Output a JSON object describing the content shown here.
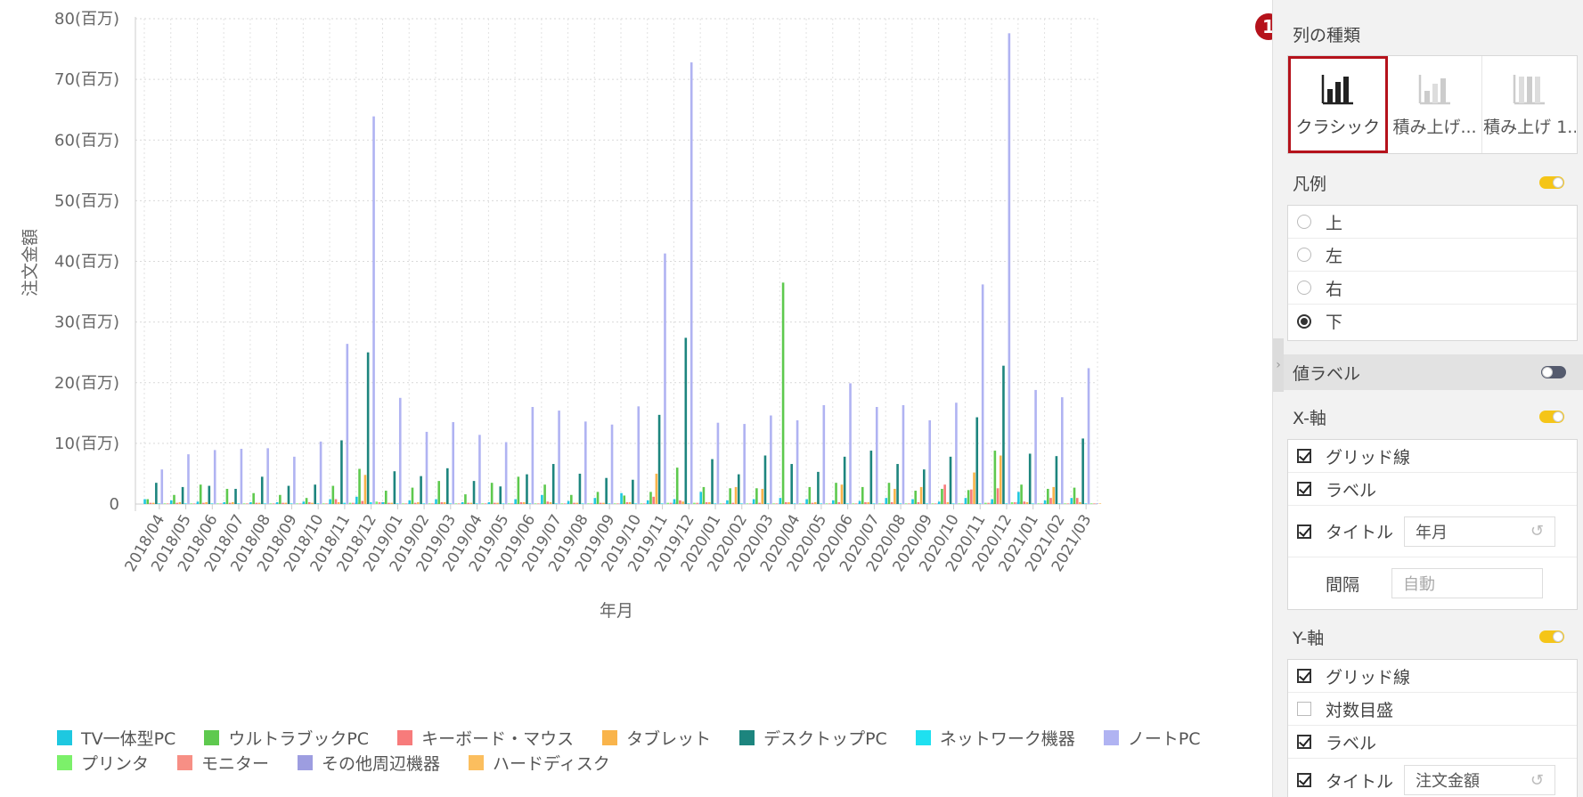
{
  "chart_data": {
    "type": "bar",
    "title": "",
    "xlabel": "年月",
    "ylabel": "注文金額",
    "ylim": [
      0,
      80
    ],
    "y_ticks": [
      "0",
      "10(百万)",
      "20(百万)",
      "30(百万)",
      "40(百万)",
      "50(百万)",
      "60(百万)",
      "70(百万)",
      "80(百万)"
    ],
    "y_tick_values": [
      0,
      10,
      20,
      30,
      40,
      50,
      60,
      70,
      80
    ],
    "grid": true,
    "legend_position": "bottom",
    "categories": [
      "2018/04",
      "2018/05",
      "2018/06",
      "2018/07",
      "2018/08",
      "2018/09",
      "2018/10",
      "2018/11",
      "2018/12",
      "2019/01",
      "2019/02",
      "2019/03",
      "2019/04",
      "2019/05",
      "2019/06",
      "2019/07",
      "2019/08",
      "2019/09",
      "2019/10",
      "2019/11",
      "2019/12",
      "2020/01",
      "2020/02",
      "2020/03",
      "2020/04",
      "2020/05",
      "2020/06",
      "2020/07",
      "2020/08",
      "2020/09",
      "2020/10",
      "2020/11",
      "2020/12",
      "2021/01",
      "2021/02",
      "2021/03"
    ],
    "series": [
      {
        "name": "TV一体型PC",
        "color": "#1ec8e0",
        "values": [
          0.8,
          0.6,
          0.4,
          0.3,
          0.3,
          0.3,
          0.4,
          0.8,
          1.2,
          0.3,
          0.6,
          0.8,
          0.3,
          0.3,
          0.8,
          1.5,
          0.5,
          1.0,
          1.8,
          0.6,
          0.8,
          2.0,
          0.6,
          0.8,
          1.0,
          0.8,
          0.6,
          0.5,
          1.0,
          0.8,
          0.4,
          1.0,
          0.8,
          2.0,
          0.6,
          1.0
        ]
      },
      {
        "name": "ウルトラブックPC",
        "color": "#5ec94e",
        "values": [
          0.8,
          1.5,
          3.2,
          2.5,
          1.8,
          1.5,
          1.0,
          3.0,
          5.8,
          2.2,
          2.7,
          3.8,
          1.6,
          3.5,
          4.5,
          3.2,
          1.5,
          2.0,
          1.4,
          2.0,
          6.0,
          2.8,
          2.6,
          2.6,
          36.5,
          2.8,
          3.5,
          2.8,
          3.5,
          2.2,
          2.5,
          2.3,
          8.8,
          3.2,
          2.5,
          2.7
        ]
      },
      {
        "name": "キーボード・マウス",
        "color": "#f77b7b",
        "values": [
          0.2,
          0.2,
          0.2,
          0.2,
          0.2,
          0.2,
          0.3,
          0.8,
          0.5,
          0.2,
          0.2,
          0.3,
          0.2,
          0.2,
          0.3,
          0.4,
          0.2,
          0.2,
          0.3,
          1.2,
          0.6,
          0.3,
          0.2,
          0.2,
          0.3,
          0.2,
          0.3,
          0.3,
          0.3,
          0.3,
          3.2,
          2.4,
          2.6,
          0.4,
          1.0,
          1.0
        ]
      },
      {
        "name": "タブレット",
        "color": "#f9b44b",
        "values": [
          0.2,
          0.3,
          0.3,
          0.3,
          0.2,
          0.2,
          0.2,
          0.3,
          4.8,
          0.2,
          0.3,
          0.3,
          0.2,
          0.2,
          0.3,
          0.3,
          0.2,
          0.2,
          0.3,
          5.0,
          0.4,
          0.3,
          2.8,
          2.5,
          0.3,
          0.3,
          3.2,
          0.3,
          2.5,
          2.8,
          0.3,
          5.2,
          8.0,
          0.3,
          2.8,
          0.3
        ]
      },
      {
        "name": "デスクトップPC",
        "color": "#1d857e",
        "values": [
          3.5,
          2.8,
          3.0,
          2.5,
          4.5,
          3.0,
          3.2,
          10.5,
          25.0,
          5.4,
          4.6,
          5.9,
          3.8,
          2.9,
          4.9,
          6.6,
          5.0,
          4.3,
          4.0,
          14.7,
          27.4,
          7.4,
          4.9,
          8.0,
          6.6,
          5.3,
          7.8,
          8.8,
          6.6,
          5.7,
          7.8,
          14.3,
          22.8,
          8.3,
          7.9,
          10.8
        ]
      },
      {
        "name": "ネットワーク機器",
        "color": "#1fe0f0",
        "values": [
          0.1,
          0.1,
          0.1,
          0.1,
          0.1,
          0.1,
          0.1,
          0.2,
          0.3,
          0.1,
          0.1,
          0.1,
          0.1,
          0.1,
          0.1,
          0.1,
          0.1,
          0.1,
          0.1,
          0.1,
          0.1,
          0.1,
          0.1,
          0.1,
          0.1,
          0.1,
          0.1,
          0.1,
          0.1,
          0.1,
          0.1,
          0.1,
          0.1,
          0.1,
          0.1,
          0.1
        ]
      },
      {
        "name": "ノートPC",
        "color": "#b0b3f2",
        "values": [
          5.7,
          8.2,
          8.9,
          9.1,
          9.2,
          7.8,
          10.3,
          26.4,
          63.9,
          17.5,
          11.9,
          13.5,
          11.4,
          10.2,
          16.0,
          15.4,
          13.6,
          13.1,
          16.1,
          41.3,
          72.8,
          13.4,
          13.2,
          14.6,
          13.8,
          16.3,
          19.9,
          16.0,
          16.3,
          13.8,
          16.7,
          36.2,
          77.6,
          18.8,
          17.6,
          22.4
        ]
      },
      {
        "name": "プリンタ",
        "color": "#7cf06a",
        "values": [
          0.1,
          0.1,
          0.1,
          0.1,
          0.1,
          0.1,
          0.1,
          0.2,
          0.4,
          0.1,
          0.1,
          0.1,
          0.1,
          0.1,
          0.1,
          0.1,
          0.1,
          0.1,
          0.1,
          0.2,
          0.2,
          0.1,
          0.1,
          0.1,
          0.1,
          0.1,
          0.1,
          0.1,
          0.1,
          0.1,
          0.1,
          0.2,
          0.3,
          0.1,
          0.1,
          0.1
        ]
      },
      {
        "name": "モニター",
        "color": "#f78f85",
        "values": [
          0.1,
          0.1,
          0.1,
          0.1,
          0.1,
          0.1,
          0.1,
          0.2,
          0.3,
          0.1,
          0.1,
          0.1,
          0.1,
          0.1,
          0.1,
          0.1,
          0.1,
          0.1,
          0.1,
          0.2,
          0.2,
          0.1,
          0.1,
          0.1,
          0.1,
          0.1,
          0.1,
          0.1,
          0.1,
          0.1,
          0.1,
          0.2,
          0.3,
          0.1,
          0.1,
          0.1
        ]
      },
      {
        "name": "その他周辺機器",
        "color": "#9d9de0",
        "values": [
          0.1,
          0.1,
          0.1,
          0.1,
          0.1,
          0.1,
          0.1,
          0.2,
          0.3,
          0.1,
          0.1,
          0.1,
          0.1,
          0.1,
          0.1,
          0.1,
          0.1,
          0.1,
          0.1,
          0.2,
          0.2,
          0.1,
          0.1,
          0.1,
          0.1,
          0.1,
          0.1,
          0.1,
          0.1,
          0.1,
          0.1,
          0.2,
          0.3,
          0.1,
          0.1,
          0.1
        ]
      },
      {
        "name": "ハードディスク",
        "color": "#fbbe5e",
        "values": [
          0.1,
          0.1,
          0.1,
          0.1,
          0.1,
          0.1,
          0.1,
          0.2,
          0.3,
          0.1,
          0.1,
          0.1,
          0.1,
          0.1,
          0.1,
          0.1,
          0.1,
          0.1,
          0.1,
          0.2,
          0.2,
          0.1,
          0.1,
          0.1,
          0.1,
          0.1,
          0.1,
          0.1,
          0.1,
          0.1,
          0.1,
          0.2,
          0.3,
          0.1,
          0.1,
          0.1
        ]
      }
    ]
  },
  "legend": {
    "rows": [
      [
        {
          "label": "TV一体型PC",
          "color": "#1ec8e0"
        },
        {
          "label": "ウルトラブックPC",
          "color": "#5ec94e"
        },
        {
          "label": "キーボード・マウス",
          "color": "#f77b7b"
        },
        {
          "label": "タブレット",
          "color": "#f9b44b"
        },
        {
          "label": "デスクトップPC",
          "color": "#1d857e"
        },
        {
          "label": "ネットワーク機器",
          "color": "#1fe0f0"
        },
        {
          "label": "ノートPC",
          "color": "#b0b3f2"
        }
      ],
      [
        {
          "label": "プリンタ",
          "color": "#7cf06a"
        },
        {
          "label": "モニター",
          "color": "#f78f85"
        },
        {
          "label": "その他周辺機器",
          "color": "#9d9de0"
        },
        {
          "label": "ハードディスク",
          "color": "#fbbe5e"
        }
      ]
    ]
  },
  "panel": {
    "badge": "1",
    "column_type": {
      "title": "列の種類",
      "options": [
        {
          "label": "クラシック",
          "icon": "classic-bar-icon",
          "selected": true
        },
        {
          "label": "積み上げ...",
          "icon": "stacked-bar-icon",
          "selected": false
        },
        {
          "label": "積み上げ 1...",
          "icon": "stacked-100-bar-icon",
          "selected": false
        }
      ]
    },
    "legend": {
      "title": "凡例",
      "enabled": true,
      "options": [
        {
          "label": "上",
          "checked": false
        },
        {
          "label": "左",
          "checked": false
        },
        {
          "label": "右",
          "checked": false
        },
        {
          "label": "下",
          "checked": true
        }
      ]
    },
    "value_label": {
      "title": "値ラベル",
      "enabled": false
    },
    "x_axis": {
      "title": "X-軸",
      "enabled": true,
      "grid_label": "グリッド線",
      "label_label": "ラベル",
      "title_label": "タイトル",
      "title_value": "年月",
      "interval_label": "間隔",
      "interval_placeholder": "自動"
    },
    "y_axis": {
      "title": "Y-軸",
      "enabled": true,
      "grid_label": "グリッド線",
      "log_label": "対数目盛",
      "label_label": "ラベル",
      "title_label": "タイトル",
      "title_value": "注文金額"
    },
    "accent_color": "#b5121b",
    "toggle_on_color": "#f5c518"
  }
}
